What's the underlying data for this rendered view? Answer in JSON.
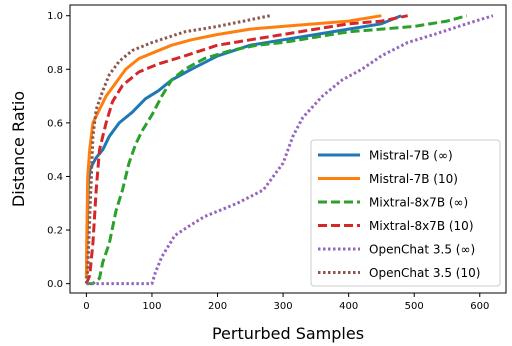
{
  "chart_data": {
    "type": "line",
    "xlabel": "Perturbed Samples",
    "ylabel": "Distance Ratio",
    "xlim": [
      -25,
      640
    ],
    "ylim": [
      -0.035,
      1.04
    ],
    "xticks": [
      0,
      100,
      200,
      300,
      400,
      500,
      600
    ],
    "yticks": [
      0.0,
      0.2,
      0.4,
      0.6,
      0.8,
      1.0
    ],
    "xtick_labels": [
      "0",
      "100",
      "200",
      "300",
      "400",
      "500",
      "600"
    ],
    "ytick_labels": [
      "0.0",
      "0.2",
      "0.4",
      "0.6",
      "0.8",
      "1.0"
    ],
    "grid": false,
    "legend_position": "lower-right",
    "series": [
      {
        "name": "Mistral-7B (∞)",
        "color": "#1f77b4",
        "style": "solid",
        "points": [
          [
            0,
            0.02
          ],
          [
            1,
            0.15
          ],
          [
            3,
            0.38
          ],
          [
            6,
            0.43
          ],
          [
            15,
            0.47
          ],
          [
            25,
            0.5
          ],
          [
            35,
            0.55
          ],
          [
            50,
            0.6
          ],
          [
            70,
            0.64
          ],
          [
            90,
            0.69
          ],
          [
            110,
            0.72
          ],
          [
            130,
            0.76
          ],
          [
            160,
            0.8
          ],
          [
            200,
            0.85
          ],
          [
            250,
            0.89
          ],
          [
            300,
            0.91
          ],
          [
            350,
            0.93
          ],
          [
            400,
            0.95
          ],
          [
            450,
            0.97
          ],
          [
            480,
            1.0
          ]
        ]
      },
      {
        "name": "Mistral-7B (10)",
        "color": "#ff7f0e",
        "style": "solid",
        "points": [
          [
            0,
            0.02
          ],
          [
            0.5,
            0.15
          ],
          [
            2,
            0.4
          ],
          [
            5,
            0.5
          ],
          [
            10,
            0.6
          ],
          [
            20,
            0.65
          ],
          [
            30,
            0.7
          ],
          [
            45,
            0.75
          ],
          [
            60,
            0.8
          ],
          [
            80,
            0.84
          ],
          [
            100,
            0.86
          ],
          [
            130,
            0.89
          ],
          [
            160,
            0.91
          ],
          [
            200,
            0.93
          ],
          [
            250,
            0.95
          ],
          [
            300,
            0.96
          ],
          [
            350,
            0.97
          ],
          [
            400,
            0.98
          ],
          [
            450,
            1.0
          ]
        ]
      },
      {
        "name": "Mixtral-8x7B (∞)",
        "color": "#2ca02c",
        "style": "dashed",
        "points": [
          [
            0,
            0.0
          ],
          [
            10,
            0.0
          ],
          [
            20,
            0.02
          ],
          [
            25,
            0.08
          ],
          [
            35,
            0.15
          ],
          [
            45,
            0.27
          ],
          [
            55,
            0.35
          ],
          [
            65,
            0.45
          ],
          [
            75,
            0.52
          ],
          [
            85,
            0.57
          ],
          [
            100,
            0.63
          ],
          [
            115,
            0.7
          ],
          [
            130,
            0.76
          ],
          [
            150,
            0.8
          ],
          [
            180,
            0.84
          ],
          [
            220,
            0.87
          ],
          [
            260,
            0.89
          ],
          [
            300,
            0.9
          ],
          [
            350,
            0.92
          ],
          [
            400,
            0.94
          ],
          [
            450,
            0.95
          ],
          [
            500,
            0.96
          ],
          [
            550,
            0.98
          ],
          [
            580,
            1.0
          ]
        ]
      },
      {
        "name": "Mixtral-8x7B (10)",
        "color": "#d62728",
        "style": "dashed",
        "points": [
          [
            0,
            0.0
          ],
          [
            5,
            0.03
          ],
          [
            10,
            0.15
          ],
          [
            15,
            0.35
          ],
          [
            20,
            0.5
          ],
          [
            30,
            0.6
          ],
          [
            40,
            0.68
          ],
          [
            55,
            0.74
          ],
          [
            80,
            0.79
          ],
          [
            110,
            0.82
          ],
          [
            150,
            0.85
          ],
          [
            200,
            0.89
          ],
          [
            250,
            0.91
          ],
          [
            300,
            0.93
          ],
          [
            350,
            0.95
          ],
          [
            400,
            0.97
          ],
          [
            450,
            0.98
          ],
          [
            490,
            1.0
          ]
        ]
      },
      {
        "name": "OpenChat 3.5 (∞)",
        "color": "#9467bd",
        "style": "dotted",
        "points": [
          [
            0,
            0.0
          ],
          [
            100,
            0.0
          ],
          [
            105,
            0.04
          ],
          [
            115,
            0.1
          ],
          [
            135,
            0.18
          ],
          [
            160,
            0.22
          ],
          [
            180,
            0.25
          ],
          [
            230,
            0.3
          ],
          [
            270,
            0.35
          ],
          [
            300,
            0.45
          ],
          [
            315,
            0.55
          ],
          [
            330,
            0.62
          ],
          [
            360,
            0.7
          ],
          [
            390,
            0.76
          ],
          [
            420,
            0.8
          ],
          [
            450,
            0.85
          ],
          [
            490,
            0.9
          ],
          [
            530,
            0.93
          ],
          [
            580,
            0.97
          ],
          [
            620,
            1.0
          ]
        ]
      },
      {
        "name": "OpenChat 3.5 (10)",
        "color": "#8c564b",
        "style": "dotted",
        "points": [
          [
            0,
            0.0
          ],
          [
            2,
            0.05
          ],
          [
            6,
            0.3
          ],
          [
            10,
            0.55
          ],
          [
            15,
            0.65
          ],
          [
            25,
            0.72
          ],
          [
            35,
            0.78
          ],
          [
            50,
            0.83
          ],
          [
            70,
            0.87
          ],
          [
            100,
            0.9
          ],
          [
            150,
            0.94
          ],
          [
            200,
            0.96
          ],
          [
            240,
            0.98
          ],
          [
            280,
            1.0
          ]
        ]
      }
    ]
  }
}
